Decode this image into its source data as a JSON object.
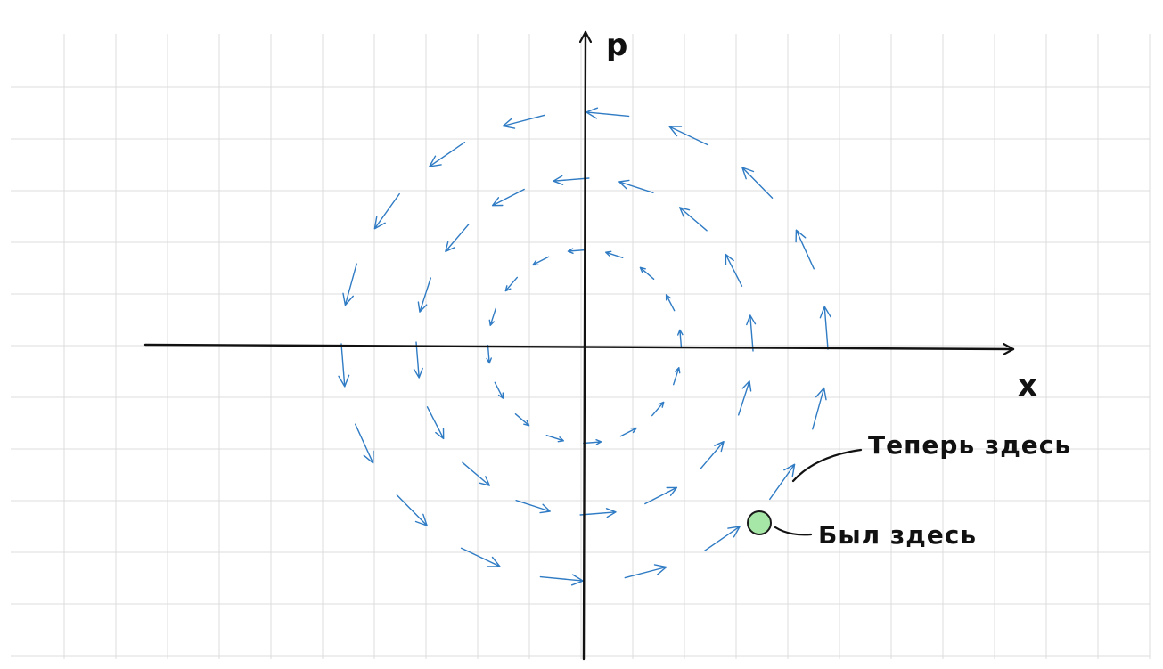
{
  "axes": {
    "x_label": "x",
    "y_label": "p"
  },
  "annotations": {
    "now_here": "Теперь здесь",
    "was_here": "Был здесь"
  },
  "colors": {
    "vector": "#2f7bc4",
    "point": "#a6e6a6",
    "ink": "#111111",
    "grid": "#dcdcdc"
  },
  "vector_field": {
    "rotation": "clockwise",
    "rings": [
      {
        "name": "inner",
        "arrow_count": 16
      },
      {
        "name": "middle",
        "arrow_count": 16
      },
      {
        "name": "outer",
        "arrow_count": 18
      }
    ]
  }
}
